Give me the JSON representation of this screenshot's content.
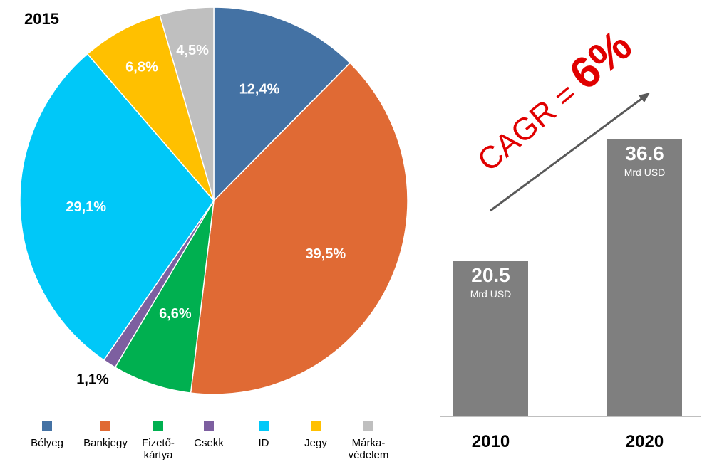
{
  "chart_data": [
    {
      "type": "pie",
      "title": "2015",
      "slices": [
        {
          "label": "Bélyeg",
          "value": 12.4,
          "display": "12,4%",
          "color": "#4472a4"
        },
        {
          "label": "Bankjegy",
          "value": 39.5,
          "display": "39,5%",
          "color": "#e06a34"
        },
        {
          "label": "Fizető-\nkártya",
          "value": 6.6,
          "display": "6,6%",
          "color": "#00b050"
        },
        {
          "label": "Csekk",
          "value": 1.1,
          "display": "1,1%",
          "color": "#7d5fa0"
        },
        {
          "label": "ID",
          "value": 29.1,
          "display": "29,1%",
          "color": "#00c8f8"
        },
        {
          "label": "Jegy",
          "value": 6.8,
          "display": "6,8%",
          "color": "#ffc000"
        },
        {
          "label": "Márka-\nvédelem",
          "value": 4.5,
          "display": "4,5%",
          "color": "#bfbfbf"
        }
      ],
      "legend_position": "bottom"
    },
    {
      "type": "bar",
      "categories": [
        "2010",
        "2020"
      ],
      "values": [
        20.5,
        36.6
      ],
      "value_labels": [
        "20.5",
        "36.6"
      ],
      "unit_label": "Mrd USD",
      "color": "#7f7f7f",
      "annotation": {
        "prefix": "CAGR = ",
        "value": "6%",
        "color": "#e00000"
      }
    }
  ]
}
